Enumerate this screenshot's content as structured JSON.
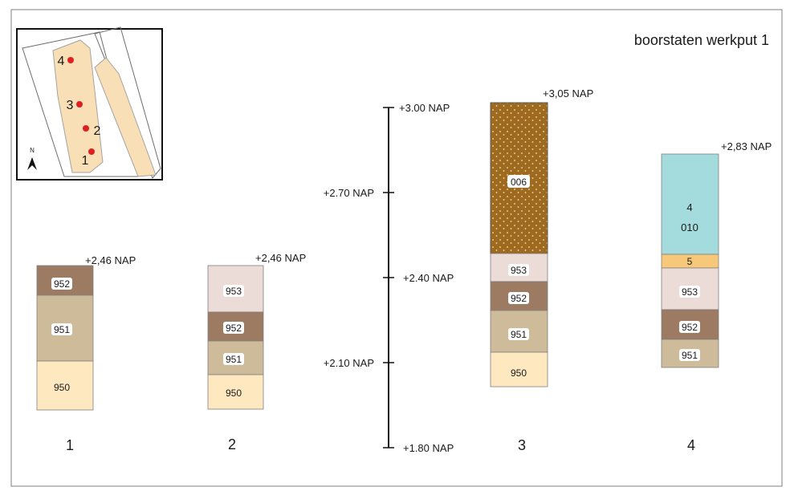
{
  "title": "boorstaten werkput 1",
  "north_label": "N",
  "scale": {
    "ticks": [
      "+3.00 NAP",
      "+2.70 NAP",
      "+2.40 NAP",
      "+2.10 NAP",
      "+1.80 NAP"
    ]
  },
  "map": {
    "points": [
      "4",
      "3",
      "2",
      "1"
    ]
  },
  "columns": [
    {
      "number": "1",
      "top_label": "+2,46 NAP",
      "layers": [
        {
          "code": "952",
          "color": "#9c7b62"
        },
        {
          "code": "951",
          "color": "#cebb99"
        },
        {
          "code": "950",
          "color": "#fde8c0"
        }
      ]
    },
    {
      "number": "2",
      "top_label": "+2,46 NAP",
      "layers": [
        {
          "code": "953",
          "color": "#ecdcd7"
        },
        {
          "code": "952",
          "color": "#9c7b62"
        },
        {
          "code": "951",
          "color": "#cebb99"
        },
        {
          "code": "950",
          "color": "#fde8c0"
        }
      ]
    },
    {
      "number": "3",
      "top_label": "+3,05 NAP",
      "layers": [
        {
          "code": "006",
          "color": "#9e6a20",
          "pattern": "dots"
        },
        {
          "code": "953",
          "color": "#ecdcd7"
        },
        {
          "code": "952",
          "color": "#9c7b62"
        },
        {
          "code": "951",
          "color": "#cebb99"
        },
        {
          "code": "950",
          "color": "#fde8c0"
        }
      ]
    },
    {
      "number": "4",
      "top_label": "+2,83 NAP",
      "layers": [
        {
          "code": "4",
          "code2": "010",
          "color": "#a4dbdc"
        },
        {
          "code": "5",
          "color": "#f8c87a"
        },
        {
          "code": "953",
          "color": "#ecdcd7"
        },
        {
          "code": "952",
          "color": "#9c7b62"
        },
        {
          "code": "951",
          "color": "#cebb99"
        }
      ]
    }
  ]
}
